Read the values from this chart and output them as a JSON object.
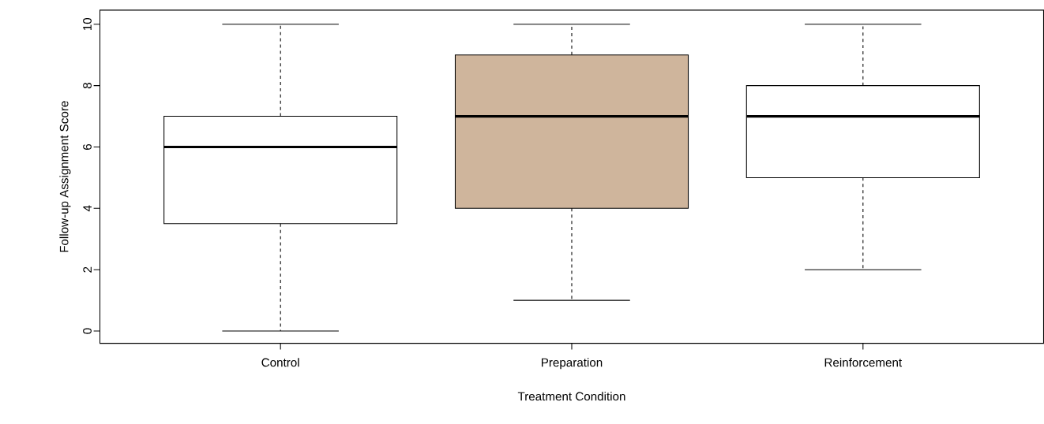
{
  "chart_data": {
    "type": "box",
    "xlabel": "Treatment Condition",
    "ylabel": "Follow-up Assignment Score",
    "categories": [
      "Control",
      "Preparation",
      "Reinforcement"
    ],
    "boxes": [
      {
        "low": 0,
        "q1": 3.5,
        "median": 6,
        "q3": 7,
        "high": 10
      },
      {
        "low": 1,
        "q1": 4,
        "median": 7,
        "q3": 9,
        "high": 10
      },
      {
        "low": 2,
        "q1": 5,
        "median": 7,
        "q3": 8,
        "high": 10
      }
    ],
    "colors": [
      "#ffffff",
      "#cfb59c",
      "#ffffff"
    ],
    "ylim": [
      -0.4,
      10.46
    ],
    "yticks": [
      0,
      2,
      4,
      6,
      8,
      10
    ]
  }
}
